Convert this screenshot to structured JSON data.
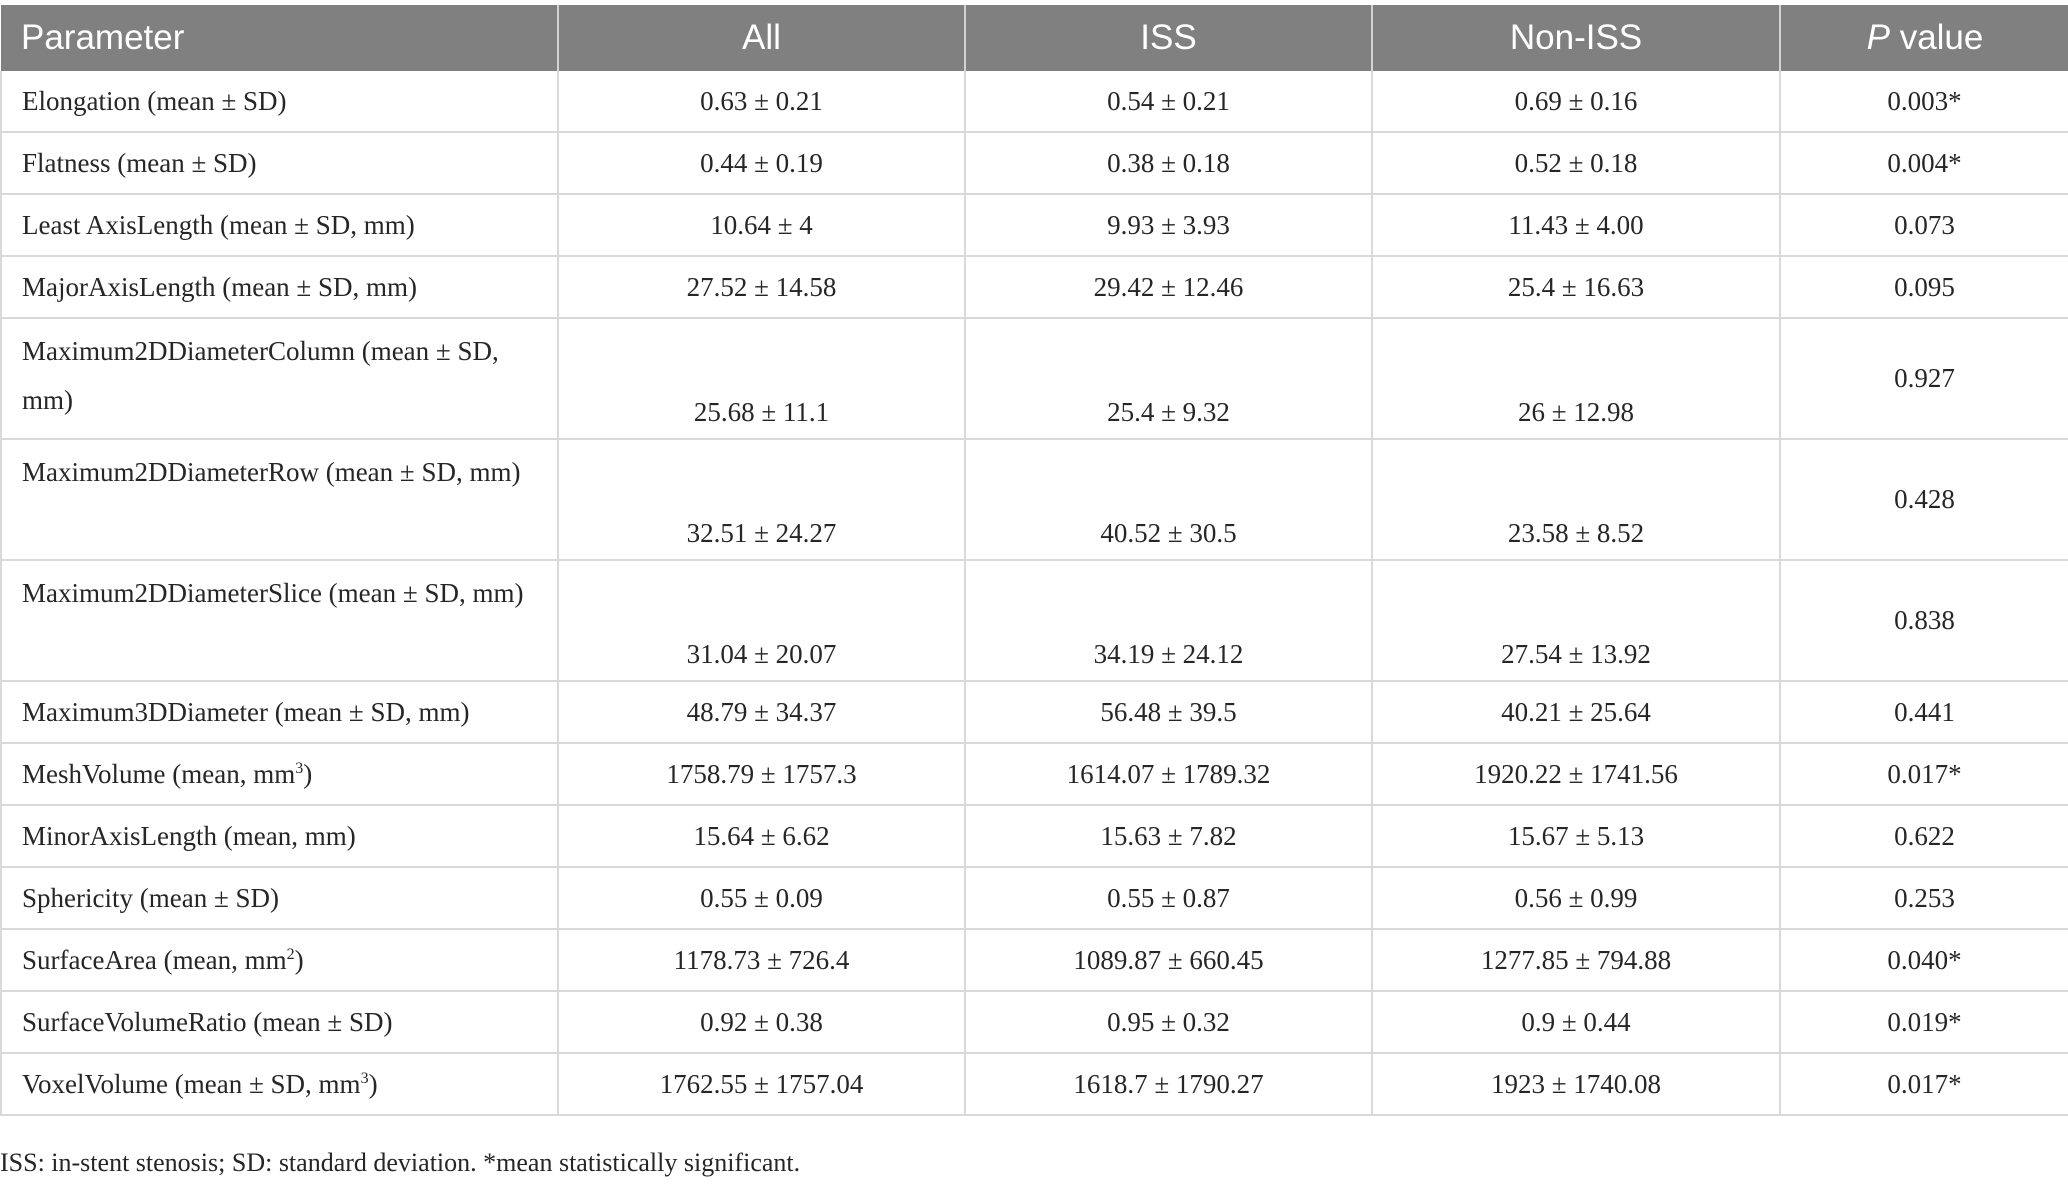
{
  "table": {
    "headers": {
      "parameter": "Parameter",
      "all": "All",
      "iss": "ISS",
      "non_iss": "Non-ISS",
      "p_italic": "P",
      "p_rest": " value"
    },
    "rows": [
      {
        "param": "Elongation (mean ± SD)",
        "sup": "",
        "param_suffix": "",
        "all": "0.63 ± 0.21",
        "iss": "0.54 ± 0.21",
        "non_iss": "0.69 ± 0.16",
        "p": "0.003*"
      },
      {
        "param": "Flatness (mean ± SD)",
        "sup": "",
        "param_suffix": "",
        "all": "0.44 ± 0.19",
        "iss": "0.38 ± 0.18",
        "non_iss": "0.52 ± 0.18",
        "p": "0.004*"
      },
      {
        "param": "Least AxisLength (mean ± SD, mm)",
        "sup": "",
        "param_suffix": "",
        "all": "10.64 ± 4",
        "iss": "9.93 ± 3.93",
        "non_iss": "11.43 ± 4.00",
        "p": "0.073"
      },
      {
        "param": "MajorAxisLength (mean ± SD, mm)",
        "sup": "",
        "param_suffix": "",
        "all": "27.52 ± 14.58",
        "iss": "29.42 ± 12.46",
        "non_iss": "25.4 ± 16.63",
        "p": "0.095"
      },
      {
        "param": "Maximum2DDiameterColumn (mean ± SD, mm)",
        "sup": "",
        "param_suffix": "",
        "all": "25.68 ± 11.1",
        "iss": "25.4 ± 9.32",
        "non_iss": "26 ± 12.98",
        "p": "0.927"
      },
      {
        "param": "Maximum2DDiameterRow (mean ± SD, mm)",
        "sup": "",
        "param_suffix": "",
        "all": "32.51 ± 24.27",
        "iss": "40.52 ± 30.5",
        "non_iss": "23.58 ± 8.52",
        "p": "0.428"
      },
      {
        "param": "Maximum2DDiameterSlice (mean ± SD, mm)",
        "sup": "",
        "param_suffix": "",
        "all": "31.04 ± 20.07",
        "iss": "34.19 ± 24.12",
        "non_iss": "27.54 ± 13.92",
        "p": "0.838"
      },
      {
        "param": "Maximum3DDiameter (mean ± SD, mm)",
        "sup": "",
        "param_suffix": "",
        "all": "48.79 ± 34.37",
        "iss": "56.48 ± 39.5",
        "non_iss": "40.21 ± 25.64",
        "p": "0.441"
      },
      {
        "param": "MeshVolume (mean, mm",
        "sup": "3",
        "param_suffix": ")",
        "all": "1758.79 ± 1757.3",
        "iss": "1614.07 ± 1789.32",
        "non_iss": "1920.22 ± 1741.56",
        "p": "0.017*"
      },
      {
        "param": "MinorAxisLength (mean, mm)",
        "sup": "",
        "param_suffix": "",
        "all": "15.64 ± 6.62",
        "iss": "15.63 ± 7.82",
        "non_iss": "15.67 ± 5.13",
        "p": "0.622"
      },
      {
        "param": "Sphericity (mean ± SD)",
        "sup": "",
        "param_suffix": "",
        "all": "0.55 ± 0.09",
        "iss": "0.55 ± 0.87",
        "non_iss": "0.56 ± 0.99",
        "p": "0.253"
      },
      {
        "param": "SurfaceArea (mean, mm",
        "sup": "2",
        "param_suffix": ")",
        "all": "1178.73 ± 726.4",
        "iss": "1089.87 ± 660.45",
        "non_iss": "1277.85 ± 794.88",
        "p": "0.040*"
      },
      {
        "param": "SurfaceVolumeRatio (mean ± SD)",
        "sup": "",
        "param_suffix": "",
        "all": "0.92 ± 0.38",
        "iss": "0.95 ± 0.32",
        "non_iss": "0.9 ± 0.44",
        "p": "0.019*"
      },
      {
        "param": "VoxelVolume (mean ± SD, mm",
        "sup": "3",
        "param_suffix": ")",
        "all": "1762.55 ± 1757.04",
        "iss": "1618.7 ± 1790.27",
        "non_iss": "1923 ± 1740.08",
        "p": "0.017*"
      }
    ]
  },
  "footnote": "ISS: in-stent stenosis; SD: standard deviation. *mean statistically significant."
}
